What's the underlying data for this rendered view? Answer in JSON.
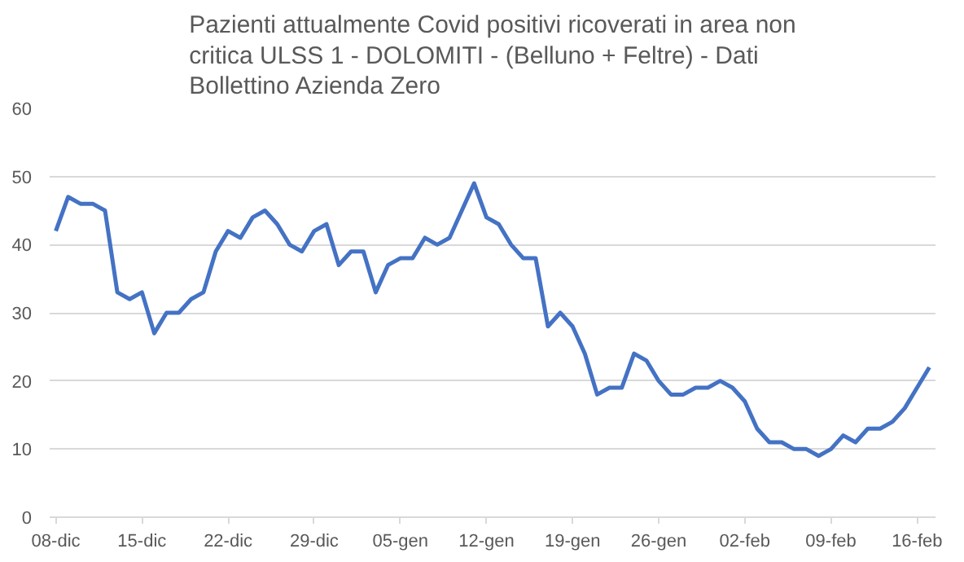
{
  "chart_data": {
    "type": "line",
    "title": "Pazienti attualmente Covid positivi ricoverati in area non critica ULSS 1 - DOLOMITI  - (Belluno + Feltre) - Dati Bollettino Azienda Zero",
    "categories": [
      "08-dic",
      null,
      null,
      null,
      null,
      null,
      null,
      "15-dic",
      null,
      null,
      null,
      null,
      null,
      null,
      "22-dic",
      null,
      null,
      null,
      null,
      null,
      null,
      "29-dic",
      null,
      null,
      null,
      null,
      null,
      null,
      "05-gen",
      null,
      null,
      null,
      null,
      null,
      null,
      "12-gen",
      null,
      null,
      null,
      null,
      null,
      null,
      "19-gen",
      null,
      null,
      null,
      null,
      null,
      null,
      "26-gen",
      null,
      null,
      null,
      null,
      null,
      null,
      "02-feb",
      null,
      null,
      null,
      null,
      null,
      null,
      "09-feb",
      null,
      null,
      null,
      null,
      null,
      null,
      "16-feb",
      null
    ],
    "series": [
      {
        "color": "#4472c4",
        "values": [
          42,
          47,
          46,
          46,
          45,
          33,
          32,
          33,
          27,
          30,
          30,
          32,
          33,
          39,
          42,
          41,
          44,
          45,
          43,
          40,
          39,
          42,
          43,
          37,
          39,
          39,
          33,
          37,
          38,
          38,
          41,
          40,
          41,
          45,
          49,
          44,
          43,
          40,
          38,
          38,
          28,
          30,
          28,
          24,
          18,
          19,
          19,
          24,
          23,
          20,
          18,
          18,
          19,
          19,
          20,
          19,
          17,
          13,
          11,
          11,
          10,
          10,
          9,
          10,
          12,
          11,
          13,
          13,
          14,
          16,
          19,
          22
        ]
      }
    ],
    "ylim": [
      0,
      60
    ],
    "yticks": [
      0,
      10,
      20,
      30,
      40,
      50,
      60
    ],
    "grid": "y"
  }
}
